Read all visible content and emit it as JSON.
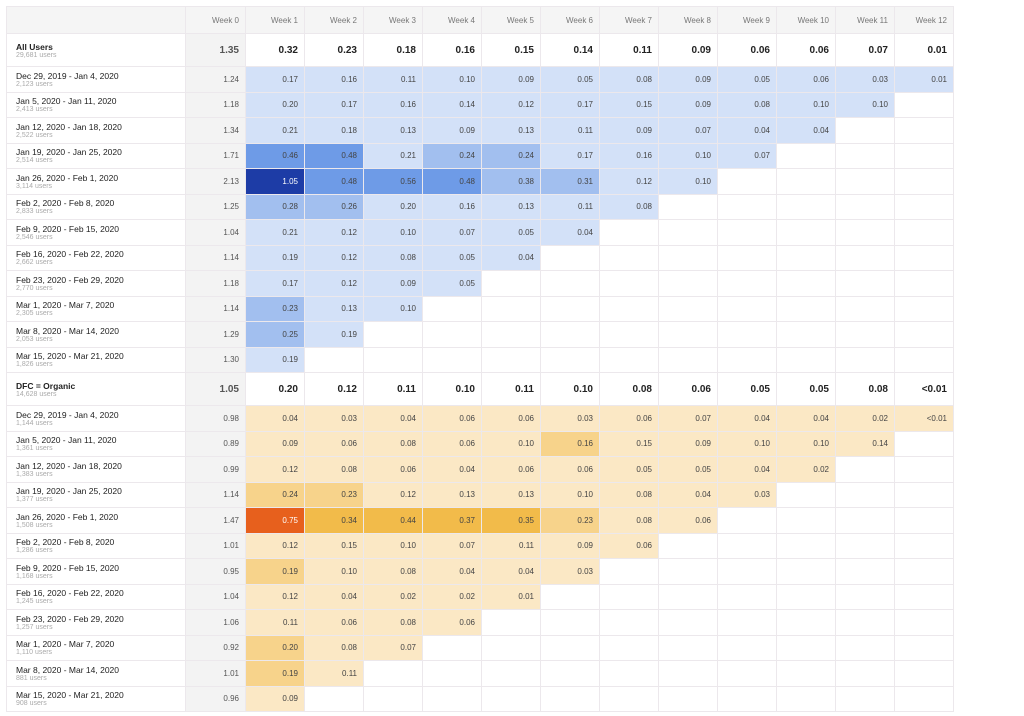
{
  "headers": [
    "Week 0",
    "Week 1",
    "Week 2",
    "Week 3",
    "Week 4",
    "Week 5",
    "Week 6",
    "Week 7",
    "Week 8",
    "Week 9",
    "Week 10",
    "Week 11",
    "Week 12"
  ],
  "palettes": {
    "blue": [
      "#d3e1f8",
      "#a2bfef",
      "#6e9be7",
      "#1d3ca6"
    ],
    "orange": [
      "#fbe8c5",
      "#f7d38b",
      "#f2bb4a",
      "#e7601d"
    ]
  },
  "groups": [
    {
      "name": "All Users",
      "users": "29,681 users",
      "palette": "blue",
      "totals": [
        "1.35",
        "0.32",
        "0.23",
        "0.18",
        "0.16",
        "0.15",
        "0.14",
        "0.11",
        "0.09",
        "0.06",
        "0.06",
        "0.07",
        "0.01"
      ],
      "rows": [
        {
          "name": "Dec 29, 2019 - Jan 4, 2020",
          "users": "2,123 users",
          "values": [
            "1.24",
            "0.17",
            "0.16",
            "0.11",
            "0.10",
            "0.09",
            "0.05",
            "0.08",
            "0.09",
            "0.05",
            "0.06",
            "0.03",
            "0.01"
          ]
        },
        {
          "name": "Jan 5, 2020 - Jan 11, 2020",
          "users": "2,413 users",
          "values": [
            "1.18",
            "0.20",
            "0.17",
            "0.16",
            "0.14",
            "0.12",
            "0.17",
            "0.15",
            "0.09",
            "0.08",
            "0.10",
            "0.10"
          ]
        },
        {
          "name": "Jan 12, 2020 - Jan 18, 2020",
          "users": "2,522 users",
          "values": [
            "1.34",
            "0.21",
            "0.18",
            "0.13",
            "0.09",
            "0.13",
            "0.11",
            "0.09",
            "0.07",
            "0.04",
            "0.04"
          ]
        },
        {
          "name": "Jan 19, 2020 - Jan 25, 2020",
          "users": "2,514 users",
          "values": [
            "1.71",
            "0.46",
            "0.48",
            "0.21",
            "0.24",
            "0.24",
            "0.17",
            "0.16",
            "0.10",
            "0.07"
          ]
        },
        {
          "name": "Jan 26, 2020 - Feb 1, 2020",
          "users": "3,114 users",
          "values": [
            "2.13",
            "1.05",
            "0.48",
            "0.56",
            "0.48",
            "0.38",
            "0.31",
            "0.12",
            "0.10"
          ]
        },
        {
          "name": "Feb 2, 2020 - Feb 8, 2020",
          "users": "2,833 users",
          "values": [
            "1.25",
            "0.28",
            "0.26",
            "0.20",
            "0.16",
            "0.13",
            "0.11",
            "0.08"
          ]
        },
        {
          "name": "Feb 9, 2020 - Feb 15, 2020",
          "users": "2,546 users",
          "values": [
            "1.04",
            "0.21",
            "0.12",
            "0.10",
            "0.07",
            "0.05",
            "0.04"
          ]
        },
        {
          "name": "Feb 16, 2020 - Feb 22, 2020",
          "users": "2,662 users",
          "values": [
            "1.14",
            "0.19",
            "0.12",
            "0.08",
            "0.05",
            "0.04"
          ]
        },
        {
          "name": "Feb 23, 2020 - Feb 29, 2020",
          "users": "2,770 users",
          "values": [
            "1.18",
            "0.17",
            "0.12",
            "0.09",
            "0.05"
          ]
        },
        {
          "name": "Mar 1, 2020 - Mar 7, 2020",
          "users": "2,305 users",
          "values": [
            "1.14",
            "0.23",
            "0.13",
            "0.10"
          ]
        },
        {
          "name": "Mar 8, 2020 - Mar 14, 2020",
          "users": "2,053 users",
          "values": [
            "1.29",
            "0.25",
            "0.19"
          ]
        },
        {
          "name": "Mar 15, 2020 - Mar 21, 2020",
          "users": "1,826 users",
          "values": [
            "1.30",
            "0.19"
          ]
        }
      ]
    },
    {
      "name": "DFC = Organic",
      "users": "14,628 users",
      "palette": "orange",
      "totals": [
        "1.05",
        "0.20",
        "0.12",
        "0.11",
        "0.10",
        "0.11",
        "0.10",
        "0.08",
        "0.06",
        "0.05",
        "0.05",
        "0.08",
        "<0.01"
      ],
      "rows": [
        {
          "name": "Dec 29, 2019 - Jan 4, 2020",
          "users": "1,144 users",
          "values": [
            "0.98",
            "0.04",
            "0.03",
            "0.04",
            "0.06",
            "0.06",
            "0.03",
            "0.06",
            "0.07",
            "0.04",
            "0.04",
            "0.02",
            "<0.01"
          ]
        },
        {
          "name": "Jan 5, 2020 - Jan 11, 2020",
          "users": "1,361 users",
          "values": [
            "0.89",
            "0.09",
            "0.06",
            "0.08",
            "0.06",
            "0.10",
            "0.16",
            "0.15",
            "0.09",
            "0.10",
            "0.10",
            "0.14"
          ]
        },
        {
          "name": "Jan 12, 2020 - Jan 18, 2020",
          "users": "1,383 users",
          "values": [
            "0.99",
            "0.12",
            "0.08",
            "0.06",
            "0.04",
            "0.06",
            "0.06",
            "0.05",
            "0.05",
            "0.04",
            "0.02"
          ]
        },
        {
          "name": "Jan 19, 2020 - Jan 25, 2020",
          "users": "1,377 users",
          "values": [
            "1.14",
            "0.24",
            "0.23",
            "0.12",
            "0.13",
            "0.13",
            "0.10",
            "0.08",
            "0.04",
            "0.03"
          ]
        },
        {
          "name": "Jan 26, 2020 - Feb 1, 2020",
          "users": "1,508 users",
          "values": [
            "1.47",
            "0.75",
            "0.34",
            "0.44",
            "0.37",
            "0.35",
            "0.23",
            "0.08",
            "0.06"
          ]
        },
        {
          "name": "Feb 2, 2020 - Feb 8, 2020",
          "users": "1,286 users",
          "values": [
            "1.01",
            "0.12",
            "0.15",
            "0.10",
            "0.07",
            "0.11",
            "0.09",
            "0.06"
          ]
        },
        {
          "name": "Feb 9, 2020 - Feb 15, 2020",
          "users": "1,168 users",
          "values": [
            "0.95",
            "0.19",
            "0.10",
            "0.08",
            "0.04",
            "0.04",
            "0.03"
          ]
        },
        {
          "name": "Feb 16, 2020 - Feb 22, 2020",
          "users": "1,245 users",
          "values": [
            "1.04",
            "0.12",
            "0.04",
            "0.02",
            "0.02",
            "0.01"
          ]
        },
        {
          "name": "Feb 23, 2020 - Feb 29, 2020",
          "users": "1,257 users",
          "values": [
            "1.06",
            "0.11",
            "0.06",
            "0.08",
            "0.06"
          ]
        },
        {
          "name": "Mar 1, 2020 - Mar 7, 2020",
          "users": "1,110 users",
          "values": [
            "0.92",
            "0.20",
            "0.08",
            "0.07"
          ]
        },
        {
          "name": "Mar 8, 2020 - Mar 14, 2020",
          "users": "881 users",
          "values": [
            "1.01",
            "0.19",
            "0.11"
          ]
        },
        {
          "name": "Mar 15, 2020 - Mar 21, 2020",
          "users": "908 users",
          "values": [
            "0.96",
            "0.09"
          ]
        }
      ]
    }
  ]
}
